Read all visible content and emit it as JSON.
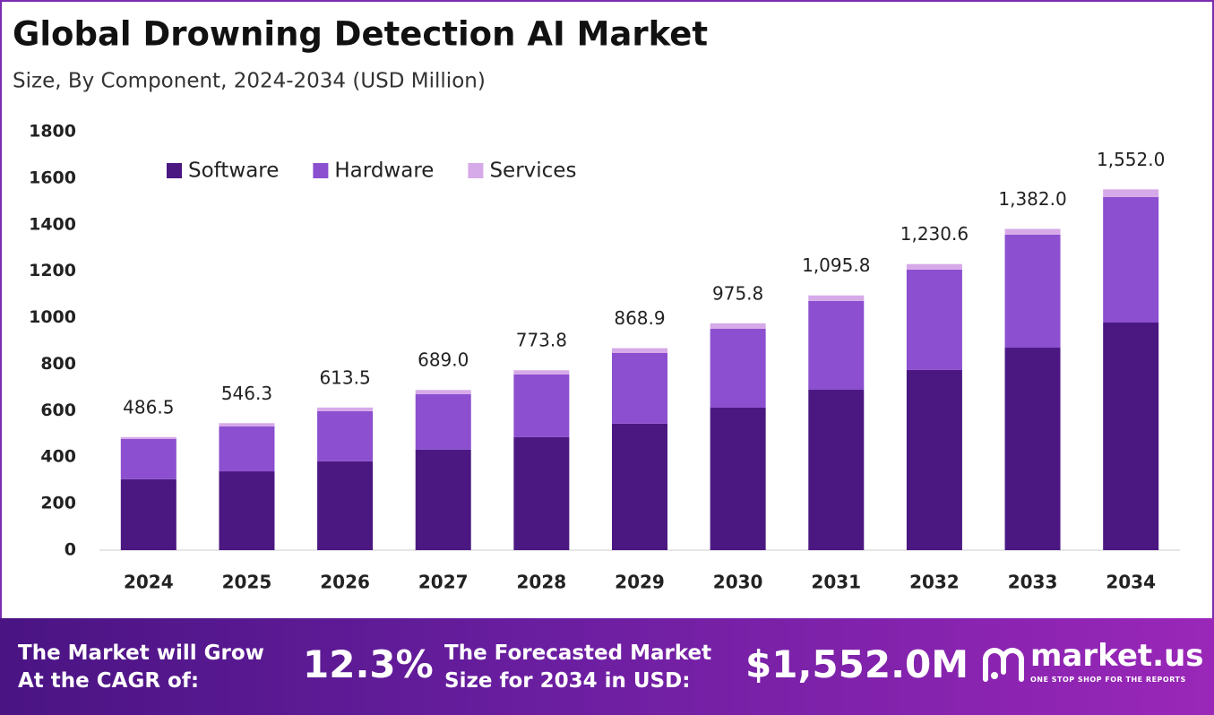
{
  "chart_data": {
    "type": "stacked_bar",
    "title": "Global Drowning Detection AI Market",
    "subtitle": "Size, By Component, 2024-2034 (USD Million)",
    "categories": [
      "2024",
      "2025",
      "2026",
      "2027",
      "2028",
      "2029",
      "2030",
      "2031",
      "2032",
      "2033",
      "2034"
    ],
    "series": [
      {
        "name": "Software",
        "color": "#4b1882",
        "values": [
          305,
          339,
          382,
          432,
          486,
          544,
          613,
          690,
          775,
          871,
          979
        ]
      },
      {
        "name": "Hardware",
        "color": "#8b4fcf",
        "values": [
          173,
          193,
          216,
          239,
          270,
          304,
          339,
          382,
          432,
          486,
          540
        ]
      },
      {
        "name": "Services",
        "color": "#d6a9e8",
        "values": [
          8.5,
          14.3,
          15.5,
          18.0,
          17.8,
          20.9,
          23.8,
          23.8,
          23.6,
          25.0,
          33.0
        ]
      }
    ],
    "totals": [
      486.5,
      546.3,
      613.5,
      689.0,
      773.8,
      868.9,
      975.8,
      1095.8,
      1230.6,
      1382.0,
      1552.0
    ],
    "total_labels": [
      "486.5",
      "546.3",
      "613.5",
      "689.0",
      "773.8",
      "868.9",
      "975.8",
      "1,095.8",
      "1,230.6",
      "1,382.0",
      "1,552.0"
    ],
    "ylim": [
      0,
      1800
    ],
    "yticks": [
      0,
      200,
      400,
      600,
      800,
      1000,
      1200,
      1400,
      1600,
      1800
    ],
    "grid": false,
    "legend": "top-left"
  },
  "footer": {
    "cagr_label": [
      "The Market will Grow",
      "At the CAGR of:"
    ],
    "cagr": "12.3%",
    "forecast_label": [
      "The Forecasted Market",
      "Size for 2034 in USD:"
    ],
    "forecast_value": "$1,552.0M",
    "brand": "market.us",
    "tagline": "ONE STOP SHOP FOR THE REPORTS"
  }
}
